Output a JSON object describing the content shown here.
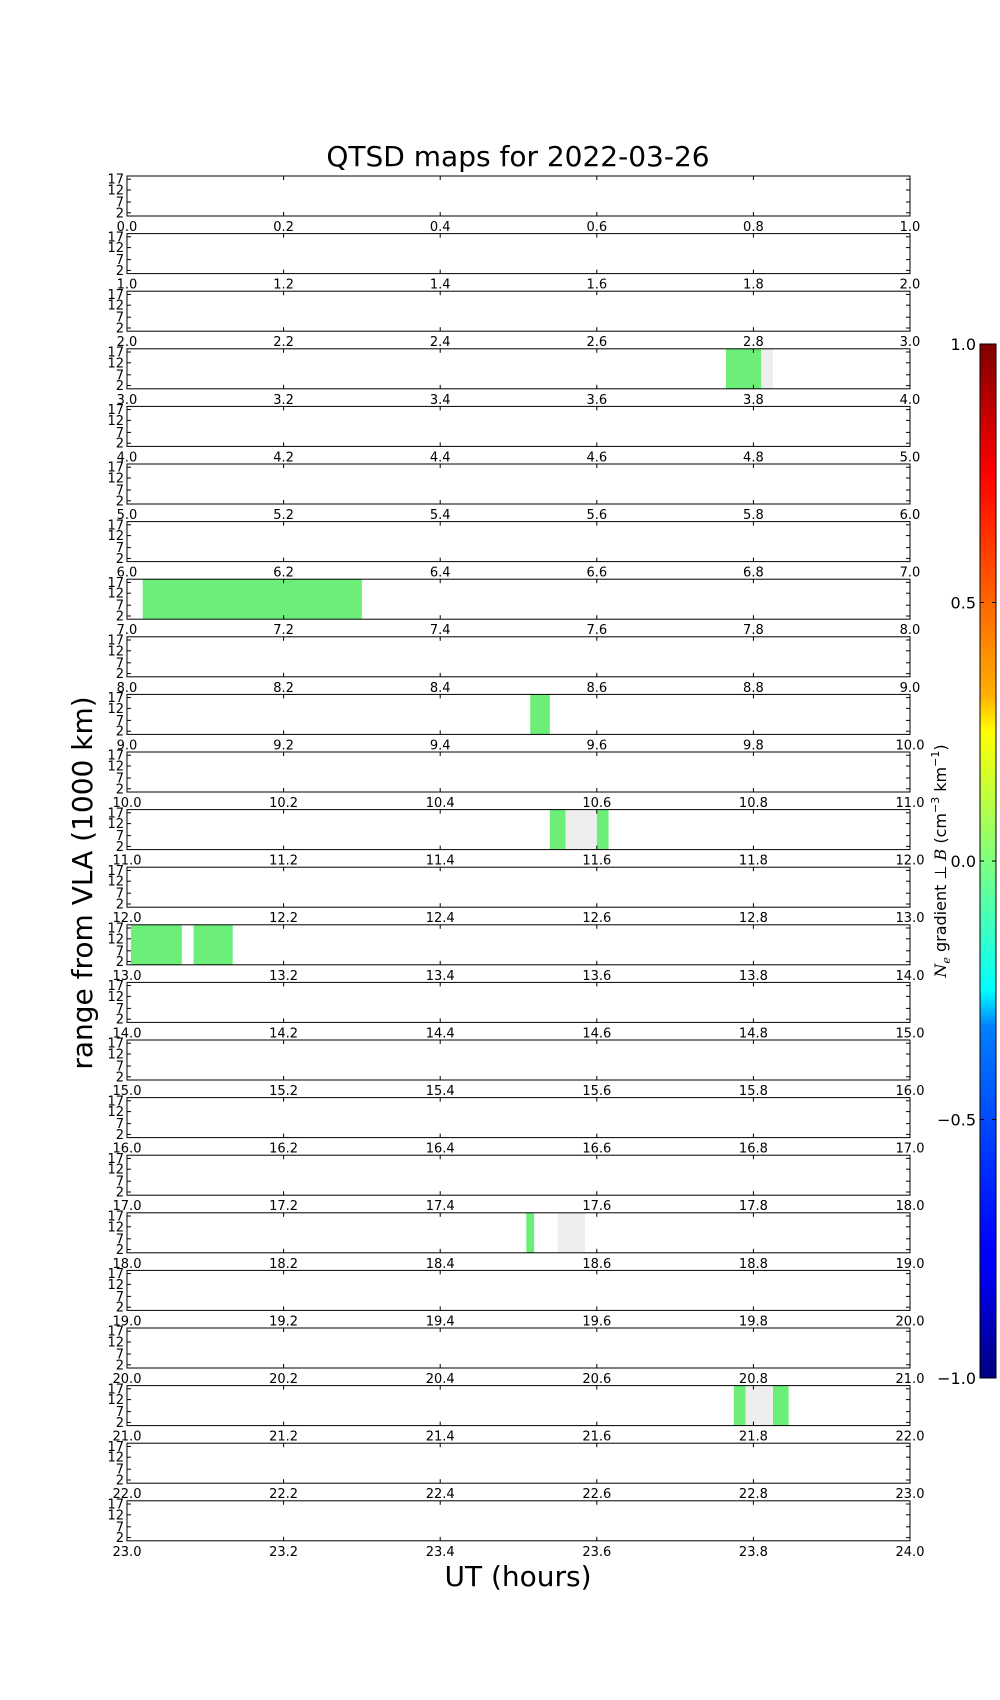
{
  "chart_data": {
    "type": "heatmap",
    "title": "QTSD maps for 2022-03-26",
    "xlabel": "UT (hours)",
    "ylabel": "range from VLA (1000 km)",
    "ytick_labels": [
      "17",
      "12",
      "7",
      "2"
    ],
    "panels": [
      {
        "xlim": [
          0,
          1
        ],
        "ticks": [
          "0.0",
          "0.2",
          "0.4",
          "0.6",
          "0.8",
          "1.0"
        ]
      },
      {
        "xlim": [
          1,
          2
        ],
        "ticks": [
          "1.0",
          "1.2",
          "1.4",
          "1.6",
          "1.8",
          "2.0"
        ]
      },
      {
        "xlim": [
          2,
          3
        ],
        "ticks": [
          "2.0",
          "2.2",
          "2.4",
          "2.6",
          "2.8",
          "3.0"
        ]
      },
      {
        "xlim": [
          3,
          4
        ],
        "ticks": [
          "3.0",
          "3.2",
          "3.4",
          "3.6",
          "3.8",
          "4.0"
        ]
      },
      {
        "xlim": [
          4,
          5
        ],
        "ticks": [
          "4.0",
          "4.2",
          "4.4",
          "4.6",
          "4.8",
          "5.0"
        ]
      },
      {
        "xlim": [
          5,
          6
        ],
        "ticks": [
          "5.0",
          "5.2",
          "5.4",
          "5.6",
          "5.8",
          "6.0"
        ]
      },
      {
        "xlim": [
          6,
          7
        ],
        "ticks": [
          "6.0",
          "6.2",
          "6.4",
          "6.6",
          "6.8",
          "7.0"
        ]
      },
      {
        "xlim": [
          7,
          8
        ],
        "ticks": [
          "7.0",
          "7.2",
          "7.4",
          "7.6",
          "7.8",
          "8.0"
        ]
      },
      {
        "xlim": [
          8,
          9
        ],
        "ticks": [
          "8.0",
          "8.2",
          "8.4",
          "8.6",
          "8.8",
          "9.0"
        ]
      },
      {
        "xlim": [
          9,
          10
        ],
        "ticks": [
          "9.0",
          "9.2",
          "9.4",
          "9.6",
          "9.8",
          "10.0"
        ]
      },
      {
        "xlim": [
          10,
          11
        ],
        "ticks": [
          "10.0",
          "10.2",
          "10.4",
          "10.6",
          "10.8",
          "11.0"
        ]
      },
      {
        "xlim": [
          11,
          12
        ],
        "ticks": [
          "11.0",
          "11.2",
          "11.4",
          "11.6",
          "11.8",
          "12.0"
        ]
      },
      {
        "xlim": [
          12,
          13
        ],
        "ticks": [
          "12.0",
          "12.2",
          "12.4",
          "12.6",
          "12.8",
          "13.0"
        ]
      },
      {
        "xlim": [
          13,
          14
        ],
        "ticks": [
          "13.0",
          "13.2",
          "13.4",
          "13.6",
          "13.8",
          "14.0"
        ]
      },
      {
        "xlim": [
          14,
          15
        ],
        "ticks": [
          "14.0",
          "14.2",
          "14.4",
          "14.6",
          "14.8",
          "15.0"
        ]
      },
      {
        "xlim": [
          15,
          16
        ],
        "ticks": [
          "15.0",
          "15.2",
          "15.4",
          "15.6",
          "15.8",
          "16.0"
        ]
      },
      {
        "xlim": [
          16,
          17
        ],
        "ticks": [
          "16.0",
          "16.2",
          "16.4",
          "16.6",
          "16.8",
          "17.0"
        ]
      },
      {
        "xlim": [
          17,
          18
        ],
        "ticks": [
          "17.0",
          "17.2",
          "17.4",
          "17.6",
          "17.8",
          "18.0"
        ]
      },
      {
        "xlim": [
          18,
          19
        ],
        "ticks": [
          "18.0",
          "18.2",
          "18.4",
          "18.6",
          "18.8",
          "19.0"
        ]
      },
      {
        "xlim": [
          19,
          20
        ],
        "ticks": [
          "19.0",
          "19.2",
          "19.4",
          "19.6",
          "19.8",
          "20.0"
        ]
      },
      {
        "xlim": [
          20,
          21
        ],
        "ticks": [
          "20.0",
          "20.2",
          "20.4",
          "20.6",
          "20.8",
          "21.0"
        ]
      },
      {
        "xlim": [
          21,
          22
        ],
        "ticks": [
          "21.0",
          "21.2",
          "21.4",
          "21.6",
          "21.8",
          "22.0"
        ]
      },
      {
        "xlim": [
          22,
          23
        ],
        "ticks": [
          "22.0",
          "22.2",
          "22.4",
          "22.6",
          "22.8",
          "23.0"
        ]
      },
      {
        "xlim": [
          23,
          24
        ],
        "ticks": [
          "23.0",
          "23.2",
          "23.4",
          "23.6",
          "23.8",
          "24.0"
        ]
      }
    ],
    "data_regions": [
      {
        "panel": 3,
        "t_start": 3.765,
        "t_end": 3.81,
        "fill": "#6cef78"
      },
      {
        "panel": 3,
        "t_start": 3.81,
        "t_end": 3.825,
        "fill": "#eeeeee"
      },
      {
        "panel": 7,
        "t_start": 7.02,
        "t_end": 7.3,
        "fill": "#6cef78"
      },
      {
        "panel": 9,
        "t_start": 9.515,
        "t_end": 9.54,
        "fill": "#6cef78"
      },
      {
        "panel": 11,
        "t_start": 11.54,
        "t_end": 11.56,
        "fill": "#6cef78"
      },
      {
        "panel": 11,
        "t_start": 11.56,
        "t_end": 11.6,
        "fill": "#eeeeee"
      },
      {
        "panel": 11,
        "t_start": 11.6,
        "t_end": 11.615,
        "fill": "#6cef78"
      },
      {
        "panel": 13,
        "t_start": 13.005,
        "t_end": 13.07,
        "fill": "#6cef78"
      },
      {
        "panel": 13,
        "t_start": 13.085,
        "t_end": 13.135,
        "fill": "#6cef78"
      },
      {
        "panel": 18,
        "t_start": 18.51,
        "t_end": 18.52,
        "fill": "#6cef78"
      },
      {
        "panel": 18,
        "t_start": 18.55,
        "t_end": 18.585,
        "fill": "#eeeeee"
      },
      {
        "panel": 21,
        "t_start": 21.775,
        "t_end": 21.79,
        "fill": "#6cef78"
      },
      {
        "panel": 21,
        "t_start": 21.79,
        "t_end": 21.825,
        "fill": "#eeeeee"
      },
      {
        "panel": 21,
        "t_start": 21.825,
        "t_end": 21.845,
        "fill": "#6cef78"
      }
    ],
    "colorbar": {
      "label": "Ne gradient ⊥ B (cm⁻³ km⁻¹)",
      "label_parts": {
        "n": "N",
        "e": "e",
        "gradient": " gradient ",
        "perp": "⊥ ",
        "b": "B",
        "unit": " (cm",
        "unit_exp1": "−3",
        "unit_mid": " km",
        "unit_exp2": "−1",
        "unit_end": ")"
      },
      "range": [
        -1.0,
        1.0
      ],
      "tick_values": [
        -1.0,
        -0.5,
        0.0,
        0.5,
        1.0
      ],
      "tick_labels": [
        "−1.0",
        "−0.5",
        "0.0",
        "0.5",
        "1.0"
      ],
      "colormap": "jet"
    }
  }
}
